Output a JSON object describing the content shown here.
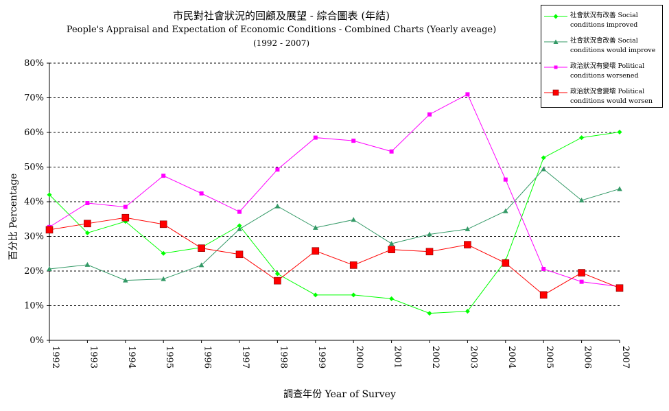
{
  "titles": {
    "main": "市民對社會狀況的回顧及展望 - 綜合圖表  (年結)",
    "sub": "People's Appraisal and Expectation of Economic Conditions - Combined Charts  (Yearly aveage)",
    "period": "(1992 - 2007)"
  },
  "chart_data": {
    "type": "line",
    "xlabel": "調查年份 Year of Survey",
    "ylabel": "百分比 Percentage",
    "ylim": [
      0,
      80
    ],
    "yticks": [
      "0%",
      "10%",
      "20%",
      "30%",
      "40%",
      "50%",
      "60%",
      "70%",
      "80%"
    ],
    "categories": [
      "1992",
      "1993",
      "1994",
      "1995",
      "1996",
      "1997",
      "1998",
      "1999",
      "2000",
      "2001",
      "2002",
      "2003",
      "2004",
      "2005",
      "2006",
      "2007"
    ],
    "grid": "horizontal dashed",
    "legend_position": "top-right",
    "series": [
      {
        "name": "社會狀況有改善 Social conditions improved",
        "color": "#00ff00",
        "marker": "diamond",
        "values": [
          42.0,
          31.0,
          34.3,
          25.1,
          26.8,
          33.1,
          19.2,
          13.1,
          13.1,
          12.0,
          7.8,
          8.4,
          23.0,
          52.7,
          58.5,
          60.1
        ]
      },
      {
        "name": "社會狀況會改善 Social conditions would improve",
        "color": "#339966",
        "marker": "triangle",
        "values": [
          20.6,
          21.8,
          17.3,
          17.7,
          21.7,
          32.1,
          38.7,
          32.5,
          34.8,
          27.9,
          30.6,
          32.1,
          37.3,
          49.4,
          40.4,
          43.7
        ]
      },
      {
        "name": "政治狀況有變壞 Political conditions worsened",
        "color": "#ff00ff",
        "marker": "square",
        "values": [
          32.7,
          39.6,
          38.5,
          47.5,
          42.4,
          37.1,
          49.3,
          58.5,
          57.6,
          54.5,
          65.2,
          71.0,
          46.4,
          20.6,
          16.9,
          15.5
        ]
      },
      {
        "name": "政治狀況會變壞 Political conditions would worsen",
        "color": "#ff0000",
        "marker": "square-large",
        "values": [
          31.9,
          33.7,
          35.4,
          33.5,
          26.6,
          24.8,
          17.2,
          25.8,
          21.7,
          26.2,
          25.6,
          27.6,
          22.3,
          13.1,
          19.5,
          15.1
        ]
      }
    ]
  },
  "legend": [
    {
      "line1": "社會狀況有改善 Social",
      "line2": "conditions improved"
    },
    {
      "line1": "社會狀況會改善 Social",
      "line2": "conditions would improve"
    },
    {
      "line1": "政治狀況有變壞 Political",
      "line2": "conditions worsened"
    },
    {
      "line1": "政治狀況會變壞 Political",
      "line2": "conditions would worsen"
    }
  ]
}
